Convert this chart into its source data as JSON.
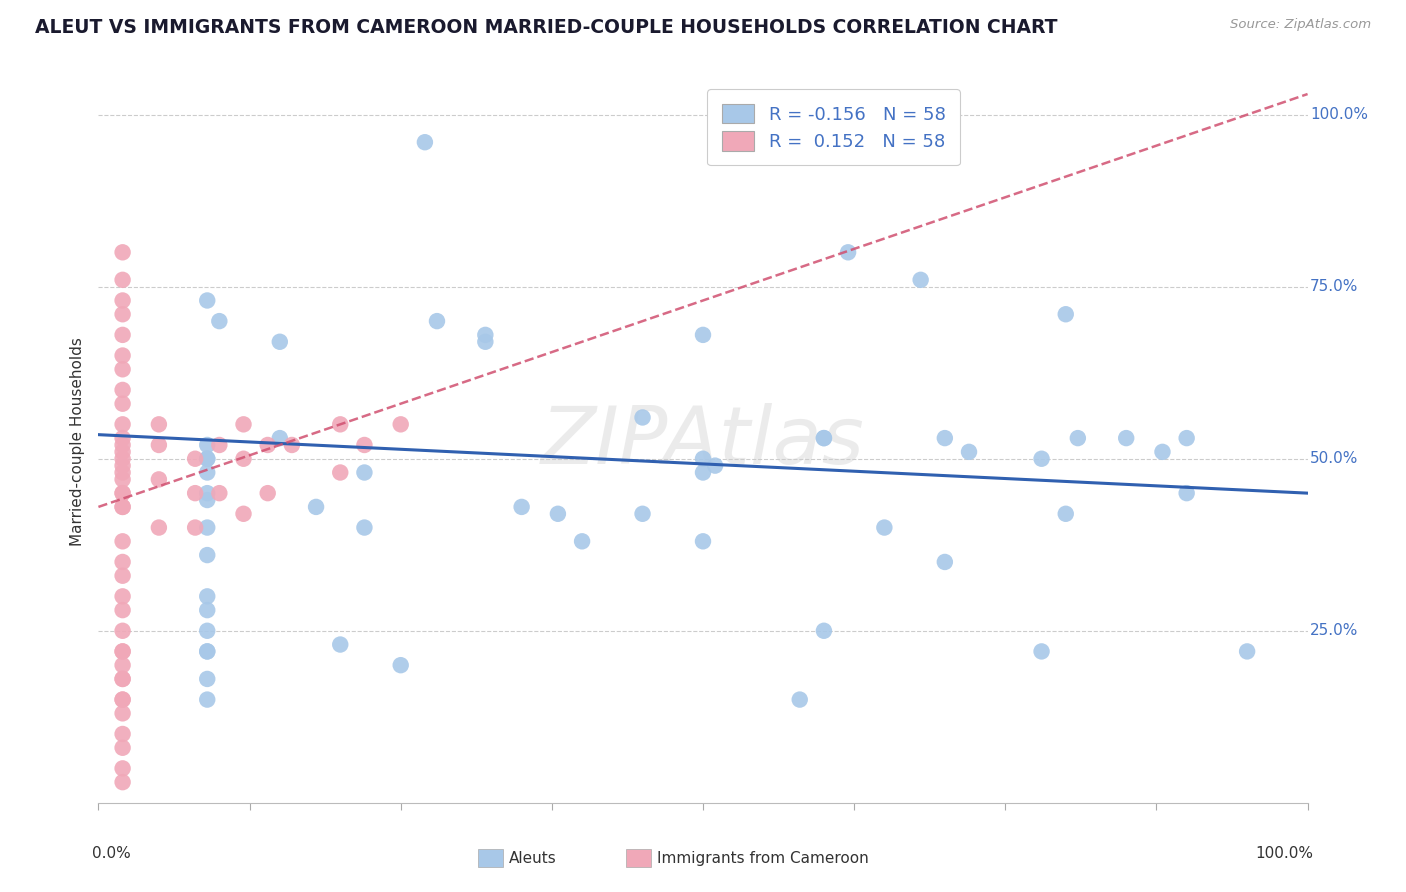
{
  "title": "ALEUT VS IMMIGRANTS FROM CAMEROON MARRIED-COUPLE HOUSEHOLDS CORRELATION CHART",
  "source_text": "Source: ZipAtlas.com",
  "ylabel": "Married-couple Households",
  "xmin": 0.0,
  "xmax": 1.0,
  "ymin": 0.0,
  "ymax": 1.05,
  "ytick_values": [
    0.25,
    0.5,
    0.75,
    1.0
  ],
  "ytick_labels": [
    "25.0%",
    "50.0%",
    "75.0%",
    "100.0%"
  ],
  "xtick_values": [
    0.0,
    0.125,
    0.25,
    0.375,
    0.5,
    0.625,
    0.75,
    0.875,
    1.0
  ],
  "legend_r_aleuts": "-0.156",
  "legend_r_cameroon": "0.152",
  "legend_n": "58",
  "watermark": "ZIPAtlas",
  "aleuts_color": "#a8c8e8",
  "cameroon_color": "#f0a8b8",
  "aleuts_line_color": "#3060b0",
  "cameroon_line_color": "#d05070",
  "grid_color": "#cccccc",
  "background_color": "#ffffff",
  "aleuts_x": [
    0.27,
    0.09,
    0.1,
    0.28,
    0.15,
    0.5,
    0.51,
    0.62,
    0.68,
    0.8,
    0.81,
    0.85,
    0.88,
    0.6,
    0.72,
    0.7,
    0.45,
    0.35,
    0.18,
    0.15,
    0.09,
    0.09,
    0.09,
    0.09,
    0.09,
    0.09,
    0.09,
    0.09,
    0.09,
    0.09,
    0.6,
    0.09,
    0.09,
    0.09,
    0.09,
    0.09,
    0.45,
    0.5,
    0.4,
    0.65,
    0.7,
    0.8,
    0.9,
    0.78,
    0.78,
    0.95,
    0.22,
    0.38,
    0.25,
    0.58,
    0.5,
    0.2,
    0.22,
    0.32,
    0.32,
    0.5,
    0.6,
    0.9
  ],
  "aleuts_y": [
    0.96,
    0.73,
    0.7,
    0.7,
    0.67,
    0.68,
    0.49,
    0.8,
    0.76,
    0.71,
    0.53,
    0.53,
    0.51,
    0.53,
    0.51,
    0.53,
    0.56,
    0.43,
    0.43,
    0.53,
    0.52,
    0.5,
    0.5,
    0.48,
    0.44,
    0.4,
    0.36,
    0.3,
    0.25,
    0.22,
    0.25,
    0.45,
    0.22,
    0.18,
    0.15,
    0.28,
    0.42,
    0.38,
    0.38,
    0.4,
    0.35,
    0.42,
    0.45,
    0.5,
    0.22,
    0.22,
    0.48,
    0.42,
    0.2,
    0.15,
    0.48,
    0.23,
    0.4,
    0.67,
    0.68,
    0.5,
    0.53,
    0.53
  ],
  "cameroon_x": [
    0.02,
    0.02,
    0.02,
    0.02,
    0.02,
    0.02,
    0.02,
    0.02,
    0.02,
    0.02,
    0.02,
    0.02,
    0.02,
    0.02,
    0.02,
    0.02,
    0.02,
    0.02,
    0.02,
    0.02,
    0.02,
    0.05,
    0.05,
    0.05,
    0.05,
    0.08,
    0.08,
    0.08,
    0.1,
    0.1,
    0.12,
    0.12,
    0.12,
    0.14,
    0.14,
    0.16,
    0.2,
    0.2,
    0.22,
    0.25,
    0.02,
    0.02,
    0.02,
    0.02,
    0.02,
    0.02,
    0.02,
    0.02,
    0.02,
    0.02,
    0.02,
    0.02,
    0.02,
    0.02,
    0.02,
    0.02,
    0.02,
    0.02
  ],
  "cameroon_y": [
    0.8,
    0.76,
    0.73,
    0.71,
    0.68,
    0.65,
    0.63,
    0.6,
    0.58,
    0.55,
    0.52,
    0.5,
    0.48,
    0.45,
    0.43,
    0.53,
    0.51,
    0.49,
    0.47,
    0.45,
    0.43,
    0.55,
    0.52,
    0.47,
    0.4,
    0.5,
    0.45,
    0.4,
    0.52,
    0.45,
    0.55,
    0.5,
    0.42,
    0.52,
    0.45,
    0.52,
    0.55,
    0.48,
    0.52,
    0.55,
    0.38,
    0.35,
    0.33,
    0.3,
    0.28,
    0.25,
    0.22,
    0.2,
    0.18,
    0.15,
    0.13,
    0.1,
    0.08,
    0.05,
    0.03,
    0.22,
    0.18,
    0.15
  ],
  "aleut_trend_x": [
    0.0,
    1.0
  ],
  "aleut_trend_y": [
    0.535,
    0.45
  ],
  "cam_trend_x": [
    0.0,
    1.0
  ],
  "cam_trend_y": [
    0.43,
    1.03
  ]
}
